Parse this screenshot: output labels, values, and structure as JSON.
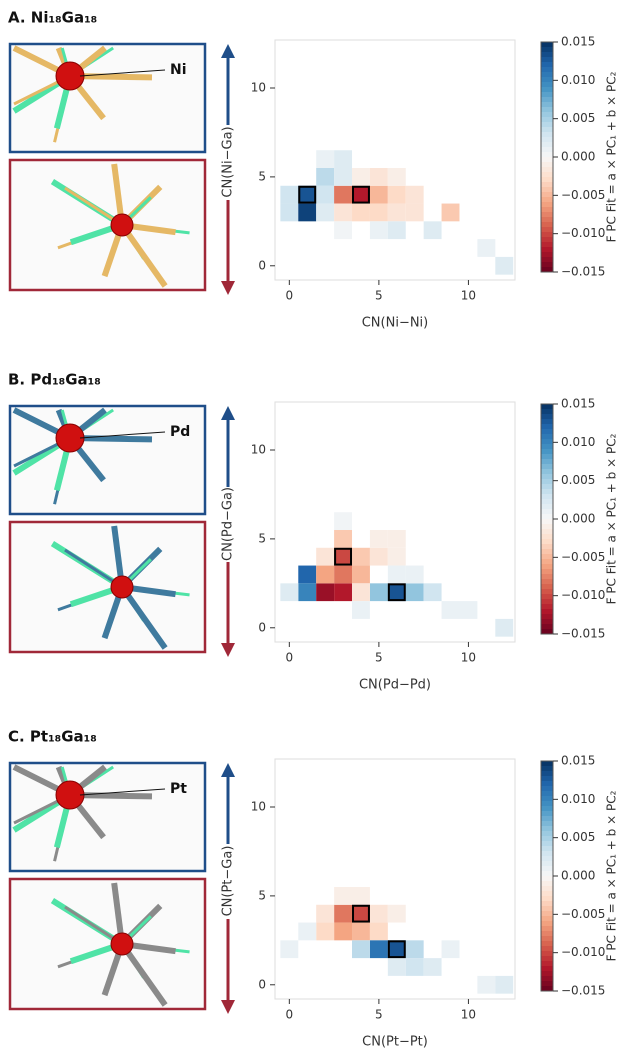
{
  "chart_data": [
    {
      "type": "heatmap",
      "title": "A. Ni₁₈Ga₁₈",
      "atom_label": "Ni",
      "x_label": "CN(Ni−Ni)",
      "y_label": "CN(Ni−Ga)",
      "colorbar_label": "F PC Fit = a × PC₁ + b × PC₂",
      "colormap": "RdBu",
      "xlim": [
        -0.8,
        12.6
      ],
      "ylim": [
        -0.8,
        12.7
      ],
      "xticks": [
        0,
        5,
        10
      ],
      "yticks": [
        0,
        5,
        10
      ],
      "clim": [
        -0.015,
        0.015
      ],
      "cticks": [
        {
          "value": 0.015,
          "label": "0.015"
        },
        {
          "value": 0.01,
          "label": "0.010"
        },
        {
          "value": 0.005,
          "label": "0.005"
        },
        {
          "value": 0,
          "label": "0.000"
        },
        {
          "value": -0.005,
          "label": "−0.005"
        },
        {
          "value": -0.01,
          "label": "−0.010"
        },
        {
          "value": -0.015,
          "label": "−0.015"
        }
      ],
      "x": [
        0,
        1,
        2,
        3,
        4,
        5,
        6,
        7,
        0,
        1,
        2,
        3,
        4,
        5,
        6,
        7,
        9,
        2,
        3,
        4,
        5,
        6,
        2,
        3,
        3,
        5,
        6,
        8,
        11,
        12
      ],
      "y": [
        4,
        4,
        4,
        4,
        4,
        4,
        4,
        4,
        3,
        3,
        3,
        3,
        3,
        3,
        3,
        3,
        3,
        5,
        5,
        5,
        5,
        5,
        6,
        6,
        2,
        2,
        2,
        2,
        1,
        0
      ],
      "values": [
        0.003,
        0.013,
        0.003,
        -0.008,
        -0.012,
        -0.005,
        -0.003,
        -0.002,
        0.003,
        0.014,
        0.002,
        -0.002,
        -0.003,
        -0.003,
        -0.002,
        -0.002,
        -0.004,
        0.004,
        0.002,
        -0.001,
        -0.002,
        -0.001,
        0.001,
        0.002,
        0.0005,
        0.001,
        0.002,
        0.002,
        0.001,
        0.002
      ],
      "highlights": [
        [
          1,
          4
        ],
        [
          4,
          4
        ]
      ]
    },
    {
      "type": "heatmap",
      "title": "B. Pd₁₈Ga₁₈",
      "atom_label": "Pd",
      "x_label": "CN(Pd−Pd)",
      "y_label": "CN(Pd−Ga)",
      "colorbar_label": "F PC Fit = a × PC₁ + b × PC₂",
      "colormap": "RdBu",
      "xlim": [
        -0.8,
        12.6
      ],
      "ylim": [
        -0.8,
        12.7
      ],
      "xticks": [
        0,
        5,
        10
      ],
      "yticks": [
        0,
        5,
        10
      ],
      "clim": [
        -0.015,
        0.015
      ],
      "cticks": [
        {
          "value": 0.015,
          "label": "0.015"
        },
        {
          "value": 0.01,
          "label": "0.010"
        },
        {
          "value": 0.005,
          "label": "0.005"
        },
        {
          "value": 0,
          "label": "0.000"
        },
        {
          "value": -0.005,
          "label": "−0.005"
        },
        {
          "value": -0.01,
          "label": "−0.010"
        },
        {
          "value": -0.015,
          "label": "−0.015"
        }
      ],
      "x": [
        1,
        1,
        2,
        3,
        3,
        3,
        2,
        4,
        4,
        3,
        2,
        5,
        5,
        6,
        6,
        6,
        5,
        7,
        8,
        4,
        0,
        9,
        10,
        12,
        6,
        7,
        4,
        3
      ],
      "y": [
        3,
        2,
        2,
        2,
        4,
        3,
        3,
        3,
        4,
        5,
        4,
        4,
        5,
        5,
        4,
        2,
        2,
        2,
        2,
        2,
        2,
        1,
        1,
        0,
        3,
        3,
        1,
        6
      ],
      "values": [
        0.012,
        0.01,
        -0.013,
        -0.012,
        -0.01,
        -0.008,
        -0.006,
        -0.005,
        -0.004,
        -0.004,
        -0.002,
        -0.002,
        -0.001,
        -0.001,
        -0.001,
        0.013,
        0.006,
        0.006,
        0.003,
        -0.002,
        0.002,
        0.001,
        0.001,
        0.002,
        0.001,
        0.001,
        0.001,
        0.0005
      ],
      "highlights": [
        [
          3,
          4
        ],
        [
          6,
          2
        ]
      ]
    },
    {
      "type": "heatmap",
      "title": "C. Pt₁₈Ga₁₈",
      "atom_label": "Pt",
      "x_label": "CN(Pt−Pt)",
      "y_label": "CN(Pt−Ga)",
      "colorbar_label": "F PC Fit = a × PC₁ + b × PC₂",
      "colormap": "RdBu",
      "xlim": [
        -0.8,
        12.6
      ],
      "ylim": [
        -0.8,
        12.7
      ],
      "xticks": [
        0,
        5,
        10
      ],
      "yticks": [
        0,
        5,
        10
      ],
      "clim": [
        -0.015,
        0.015
      ],
      "cticks": [
        {
          "value": 0.015,
          "label": "0.015"
        },
        {
          "value": 0.01,
          "label": "0.010"
        },
        {
          "value": 0.005,
          "label": "0.005"
        },
        {
          "value": 0,
          "label": "0.000"
        },
        {
          "value": -0.005,
          "label": "−0.005"
        },
        {
          "value": -0.01,
          "label": "−0.010"
        },
        {
          "value": -0.015,
          "label": "−0.015"
        }
      ],
      "x": [
        4,
        3,
        3,
        4,
        5,
        2,
        2,
        5,
        6,
        3,
        4,
        6,
        5,
        4,
        7,
        7,
        6,
        8,
        1,
        0,
        9,
        11,
        12
      ],
      "y": [
        4,
        4,
        3,
        3,
        3,
        4,
        3,
        4,
        4,
        5,
        5,
        2,
        2,
        2,
        2,
        1,
        1,
        1,
        3,
        2,
        2,
        0,
        0
      ],
      "values": [
        -0.01,
        -0.008,
        -0.006,
        -0.005,
        -0.003,
        -0.002,
        -0.003,
        -0.002,
        -0.001,
        -0.001,
        -0.001,
        0.013,
        0.011,
        0.004,
        0.004,
        0.003,
        0.002,
        0.002,
        0.001,
        0.001,
        0.001,
        0.001,
        0.002
      ],
      "highlights": [
        [
          4,
          4
        ],
        [
          6,
          2
        ]
      ]
    }
  ]
}
